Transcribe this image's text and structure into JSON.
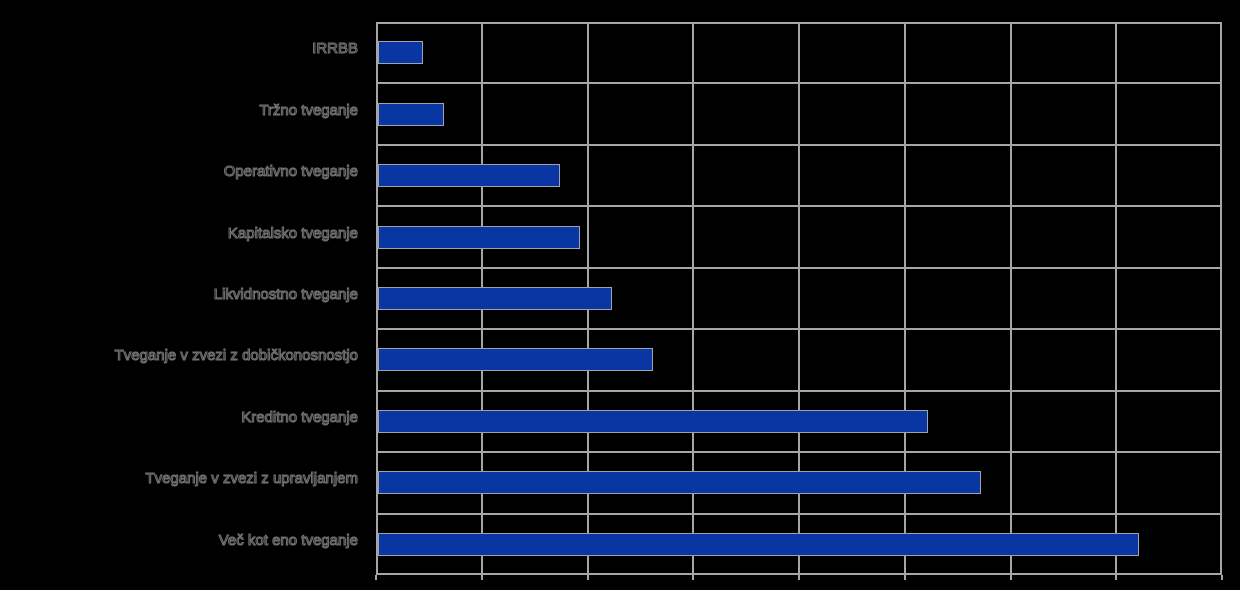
{
  "chart_data": {
    "type": "bar",
    "orientation": "horizontal",
    "title": "",
    "xlabel": "",
    "ylabel": "",
    "categories": [
      "IRRBB",
      "Tržno tveganje",
      "Operativno tveganje",
      "Kapitalsko tveganje",
      "Likvidnostno tveganje",
      "Tveganje v zvezi z dobičkonosnostjo",
      "Kreditno tveganje",
      "Tveganje v zvezi z upravljanjem",
      "Več kot eno tveganje"
    ],
    "values": [
      0.43,
      0.62,
      1.72,
      1.91,
      2.21,
      2.6,
      5.2,
      5.7,
      7.2
    ],
    "xlim": [
      0,
      8
    ],
    "gridline_step": 1,
    "grid": true,
    "legend": "none",
    "tick_labels_visible": false
  },
  "colors": {
    "background": "#000000",
    "bar": "#0a36a3",
    "grid": "#a6a6a6"
  }
}
